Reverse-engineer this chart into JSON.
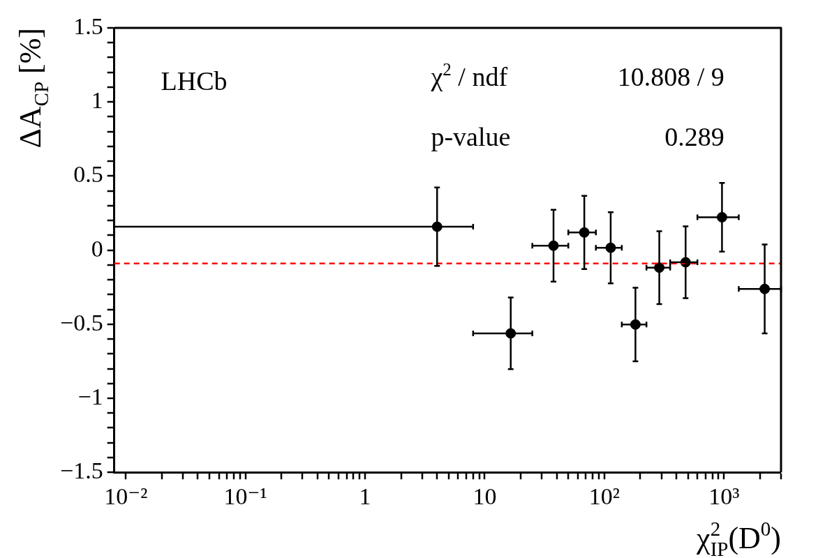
{
  "chart_data": {
    "type": "scatter",
    "xlabel": "χ$^{2}$$_{IP}$(D$^{0}$)",
    "ylabel": "ΔA$_{CP}$ [%]",
    "log": "x",
    "xlim": [
      0.008,
      3000
    ],
    "ylim": [
      -1.5,
      1.5
    ],
    "xticks": [
      {
        "value": 0.01,
        "label": "10⁻²"
      },
      {
        "value": 0.02,
        "label": null
      },
      {
        "value": 0.03,
        "label": null
      },
      {
        "value": 0.04,
        "label": null
      },
      {
        "value": 0.05,
        "label": null
      },
      {
        "value": 0.06,
        "label": null
      },
      {
        "value": 0.07,
        "label": null
      },
      {
        "value": 0.08,
        "label": null
      },
      {
        "value": 0.09,
        "label": null
      },
      {
        "value": 0.1,
        "label": "10⁻¹"
      },
      {
        "value": 0.2,
        "label": null
      },
      {
        "value": 0.3,
        "label": null
      },
      {
        "value": 0.4,
        "label": null
      },
      {
        "value": 0.5,
        "label": null
      },
      {
        "value": 0.6,
        "label": null
      },
      {
        "value": 0.7,
        "label": null
      },
      {
        "value": 0.8,
        "label": null
      },
      {
        "value": 0.9,
        "label": null
      },
      1,
      {
        "value": 2,
        "label": null
      },
      {
        "value": 3,
        "label": null
      },
      {
        "value": 4,
        "label": null
      },
      {
        "value": 5,
        "label": null
      },
      {
        "value": 6,
        "label": null
      },
      {
        "value": 7,
        "label": null
      },
      {
        "value": 8,
        "label": null
      },
      {
        "value": 9,
        "label": null
      },
      10,
      {
        "value": 20,
        "label": null
      },
      {
        "value": 30,
        "label": null
      },
      {
        "value": 40,
        "label": null
      },
      {
        "value": 50,
        "label": null
      },
      {
        "value": 60,
        "label": null
      },
      {
        "value": 70,
        "label": null
      },
      {
        "value": 80,
        "label": null
      },
      {
        "value": 90,
        "label": null
      },
      {
        "value": 100,
        "label": "10²"
      },
      {
        "value": 200,
        "label": null
      },
      {
        "value": 300,
        "label": null
      },
      {
        "value": 400,
        "label": null
      },
      {
        "value": 500,
        "label": null
      },
      {
        "value": 600,
        "label": null
      },
      {
        "value": 700,
        "label": null
      },
      {
        "value": 800,
        "label": null
      },
      {
        "value": 900,
        "label": null
      },
      {
        "value": 1000,
        "label": "10³"
      },
      {
        "value": 2000,
        "label": null
      },
      {
        "value": 3000,
        "label": null
      }
    ],
    "yticks": [
      {
        "value": -1.5,
        "label": "−1.5"
      },
      {
        "value": -1.4,
        "label": null
      },
      {
        "value": -1.3,
        "label": null
      },
      {
        "value": -1.2,
        "label": null
      },
      {
        "value": -1.1,
        "label": null
      },
      {
        "value": -1,
        "label": "−1"
      },
      {
        "value": -0.9,
        "label": null
      },
      {
        "value": -0.8,
        "label": null
      },
      {
        "value": -0.7,
        "label": null
      },
      {
        "value": -0.6,
        "label": null
      },
      {
        "value": -0.5,
        "label": "−0.5"
      },
      {
        "value": -0.4,
        "label": null
      },
      {
        "value": -0.3,
        "label": null
      },
      {
        "value": -0.2,
        "label": null
      },
      {
        "value": -0.1,
        "label": null
      },
      0,
      {
        "value": 0.1,
        "label": null
      },
      {
        "value": 0.2,
        "label": null
      },
      {
        "value": 0.3,
        "label": null
      },
      {
        "value": 0.4,
        "label": null
      },
      0.5,
      {
        "value": 0.6,
        "label": null
      },
      {
        "value": 0.7,
        "label": null
      },
      {
        "value": 0.8,
        "label": null
      },
      {
        "value": 0.9,
        "label": null
      },
      1,
      {
        "value": 1.1,
        "label": null
      },
      {
        "value": 1.2,
        "label": null
      },
      {
        "value": 1.3,
        "label": null
      },
      {
        "value": 1.4,
        "label": null
      },
      1.5
    ],
    "grid": false,
    "legend": false,
    "marker": "circle",
    "series": [
      {
        "color": "#000000",
        "x": [
          4,
          16.5,
          37.6,
          68,
          113,
          182,
          288,
          478,
          963,
          2190
        ],
        "values": [
          0.158,
          -0.562,
          0.03,
          0.119,
          0.016,
          -0.502,
          -0.118,
          -0.082,
          0.222,
          -0.262
        ],
        "errors": [
          0.265,
          0.242,
          0.242,
          0.247,
          0.24,
          0.248,
          0.246,
          0.242,
          0.232,
          0.3
        ],
        "xerrors": [
          [
            0.008,
            8
          ],
          [
            8,
            25
          ],
          [
            25,
            50
          ],
          [
            50,
            85
          ],
          [
            85,
            140
          ],
          [
            140,
            225
          ],
          [
            225,
            355
          ],
          [
            355,
            600
          ],
          [
            600,
            1330
          ],
          [
            1330,
            3000
          ]
        ]
      }
    ],
    "ref_lines": [
      {
        "axis": "y",
        "value": -0.09,
        "color": "#ff0000",
        "line_style": "dashed"
      }
    ],
    "annotations": [
      "LHCb",
      "χ$^{2}$ / ndf",
      "10.808 / 9",
      "p-value",
      "0.289"
    ]
  }
}
